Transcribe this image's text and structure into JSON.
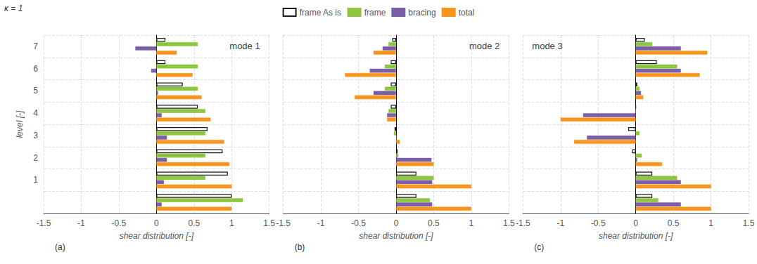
{
  "chart_data": [
    {
      "type": "bar",
      "orientation": "horizontal",
      "title": "mode 1",
      "xlabel": "shear distribution [-]",
      "ylabel": "level [-]",
      "annotations": [
        "κ = 1",
        "(a)"
      ],
      "categories": [
        null,
        "1",
        "2",
        "3",
        "4",
        "5",
        "6",
        "7"
      ],
      "series": [
        {
          "name": "frame As is",
          "color": "#ffffff",
          "values": [
            1.0,
            0.95,
            0.88,
            0.68,
            0.55,
            0.35,
            0.12,
            0.12
          ]
        },
        {
          "name": "frame",
          "color": "#8dc63f",
          "values": [
            1.15,
            0.65,
            0.65,
            0.65,
            0.65,
            0.55,
            0.55,
            0.55
          ]
        },
        {
          "name": "bracing",
          "color": "#7b5ea7",
          "values": [
            0.07,
            0.1,
            0.14,
            0.14,
            0.07,
            0.02,
            -0.07,
            -0.28
          ]
        },
        {
          "name": "total",
          "color": "#f7941d",
          "values": [
            1.0,
            1.0,
            0.97,
            0.9,
            0.72,
            0.6,
            0.48,
            0.27
          ]
        }
      ],
      "xlim": [
        -1.5,
        1.5
      ],
      "xticks": [
        -1.5,
        -1,
        -0.5,
        0,
        0.5,
        1,
        1.5
      ],
      "grid": true,
      "legend": "top"
    },
    {
      "type": "bar",
      "orientation": "horizontal",
      "title": "mode 2",
      "xlabel": "shear distribution [-]",
      "annotations": [
        "(b)"
      ],
      "categories": [
        null,
        "1",
        "2",
        "3",
        "4",
        "5",
        "6",
        "7"
      ],
      "series": [
        {
          "name": "frame As is",
          "color": "#ffffff",
          "values": [
            0.27,
            0.27,
            0.02,
            -0.02,
            -0.07,
            -0.07,
            -0.07,
            -0.05
          ]
        },
        {
          "name": "frame",
          "color": "#8dc63f",
          "values": [
            0.45,
            0.5,
            0.03,
            -0.03,
            -0.1,
            -0.15,
            -0.15,
            -0.1
          ]
        },
        {
          "name": "bracing",
          "color": "#7b5ea7",
          "values": [
            0.48,
            0.48,
            0.47,
            0.01,
            -0.12,
            -0.3,
            -0.35,
            -0.18
          ]
        },
        {
          "name": "total",
          "color": "#f7941d",
          "values": [
            1.0,
            1.0,
            0.5,
            0.05,
            -0.12,
            -0.55,
            -0.68,
            -0.3
          ]
        }
      ],
      "xlim": [
        -1.5,
        1.5
      ],
      "xticks": [
        -1.5,
        -1,
        -0.5,
        0,
        0.5,
        1,
        1.5
      ],
      "grid": true,
      "tick_labels": "x"
    },
    {
      "type": "bar",
      "orientation": "horizontal",
      "title": "mode 3",
      "xlabel": "shear distribution [-]",
      "annotations": [
        "(c)"
      ],
      "categories": [
        null,
        "1",
        "2",
        "3",
        "4",
        "5",
        "6",
        "7"
      ],
      "series": [
        {
          "name": "frame As is",
          "color": "#ffffff",
          "values": [
            0.22,
            0.22,
            -0.05,
            -0.1,
            0.0,
            0.02,
            0.28,
            0.12
          ]
        },
        {
          "name": "frame",
          "color": "#8dc63f",
          "values": [
            0.3,
            0.55,
            0.08,
            0.05,
            0.0,
            0.05,
            0.55,
            0.22
          ]
        },
        {
          "name": "bracing",
          "color": "#7b5ea7",
          "values": [
            0.6,
            0.6,
            0.02,
            -0.65,
            -0.7,
            0.07,
            0.6,
            0.6
          ]
        },
        {
          "name": "total",
          "color": "#f7941d",
          "values": [
            1.0,
            1.0,
            0.35,
            -0.82,
            -1.0,
            0.1,
            0.85,
            0.95
          ]
        }
      ],
      "xlim": [
        -1.5,
        1.5
      ],
      "xticks": [
        -1.5,
        -1,
        -0.5,
        0,
        0.5,
        1,
        1.5
      ],
      "grid": true,
      "tick_labels": "x"
    }
  ]
}
